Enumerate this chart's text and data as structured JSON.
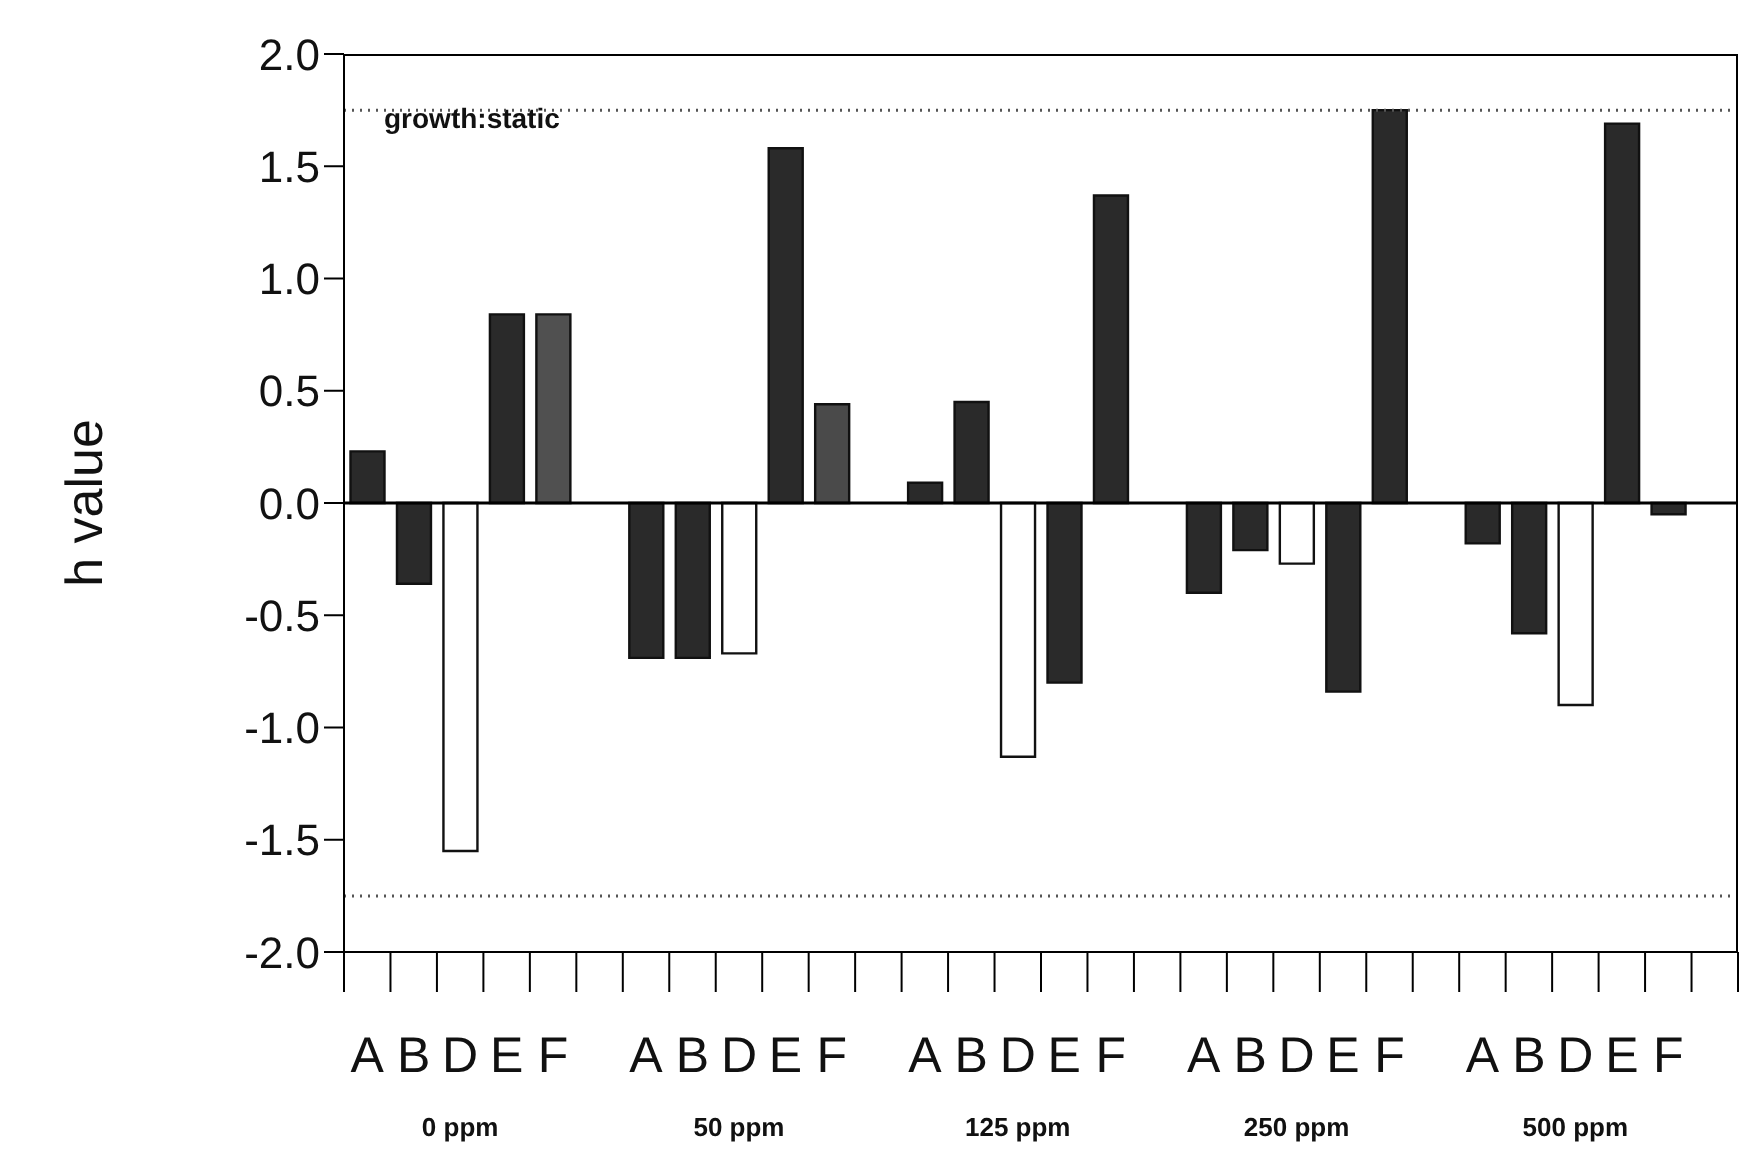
{
  "chart_data": {
    "type": "bar",
    "ylabel": "h value",
    "categories": [
      "A",
      "B",
      "D",
      "E",
      "F",
      null,
      "A",
      "B",
      "D",
      "E",
      "F",
      null,
      "A",
      "B",
      "D",
      "E",
      "F",
      null,
      "A",
      "B",
      "D",
      "E",
      "F",
      null,
      "A",
      "B",
      "D",
      "E",
      "F",
      null
    ],
    "values": [
      0.23,
      -0.36,
      -1.55,
      0.84,
      0.84,
      null,
      -0.69,
      -0.69,
      -0.67,
      1.58,
      0.44,
      null,
      0.09,
      0.45,
      -1.13,
      -0.8,
      1.37,
      null,
      -0.4,
      -0.21,
      -0.27,
      -0.84,
      1.75,
      null,
      -0.18,
      -0.58,
      -0.9,
      1.69,
      -0.05,
      null
    ],
    "colors": [
      "#2a2a2a",
      "#2a2a2a",
      "#ffffff",
      "#2a2a2a",
      "#505050",
      null,
      "#2a2a2a",
      "#2a2a2a",
      "#ffffff",
      "#2a2a2a",
      "#4a4a4a",
      null,
      "#2a2a2a",
      "#2a2a2a",
      "#ffffff",
      "#2a2a2a",
      "#2a2a2a",
      null,
      "#2a2a2a",
      "#2a2a2a",
      "#ffffff",
      "#2a2a2a",
      "#2a2a2a",
      null,
      "#2a2a2a",
      "#2a2a2a",
      "#ffffff",
      "#2a2a2a",
      "#2a2a2a",
      null
    ],
    "ylim": [
      -2,
      2
    ],
    "yticks": [
      {
        "value": -2,
        "label": "-2.0"
      },
      {
        "value": -1.5,
        "label": "-1.5"
      },
      {
        "value": -1,
        "label": "-1.0"
      },
      {
        "value": -0.5,
        "label": "-0.5"
      },
      {
        "value": 0,
        "label": "0.0"
      },
      {
        "value": 0.5,
        "label": "0.5"
      },
      {
        "value": 1,
        "label": "1.0"
      },
      {
        "value": 1.5,
        "label": "1.5"
      },
      {
        "value": 2,
        "label": "2.0"
      }
    ],
    "ref_lines": [
      {
        "axis": "y",
        "value": 1.75,
        "label": null,
        "line_style": "dotted",
        "color": "#555555"
      },
      {
        "axis": "y",
        "value": -1.75,
        "label": null,
        "line_style": "dotted",
        "color": "#555555"
      }
    ],
    "annotations": [
      "growth:static",
      "0 ppm",
      "50 ppm",
      "125 ppm",
      "250 ppm",
      "500 ppm"
    ]
  }
}
